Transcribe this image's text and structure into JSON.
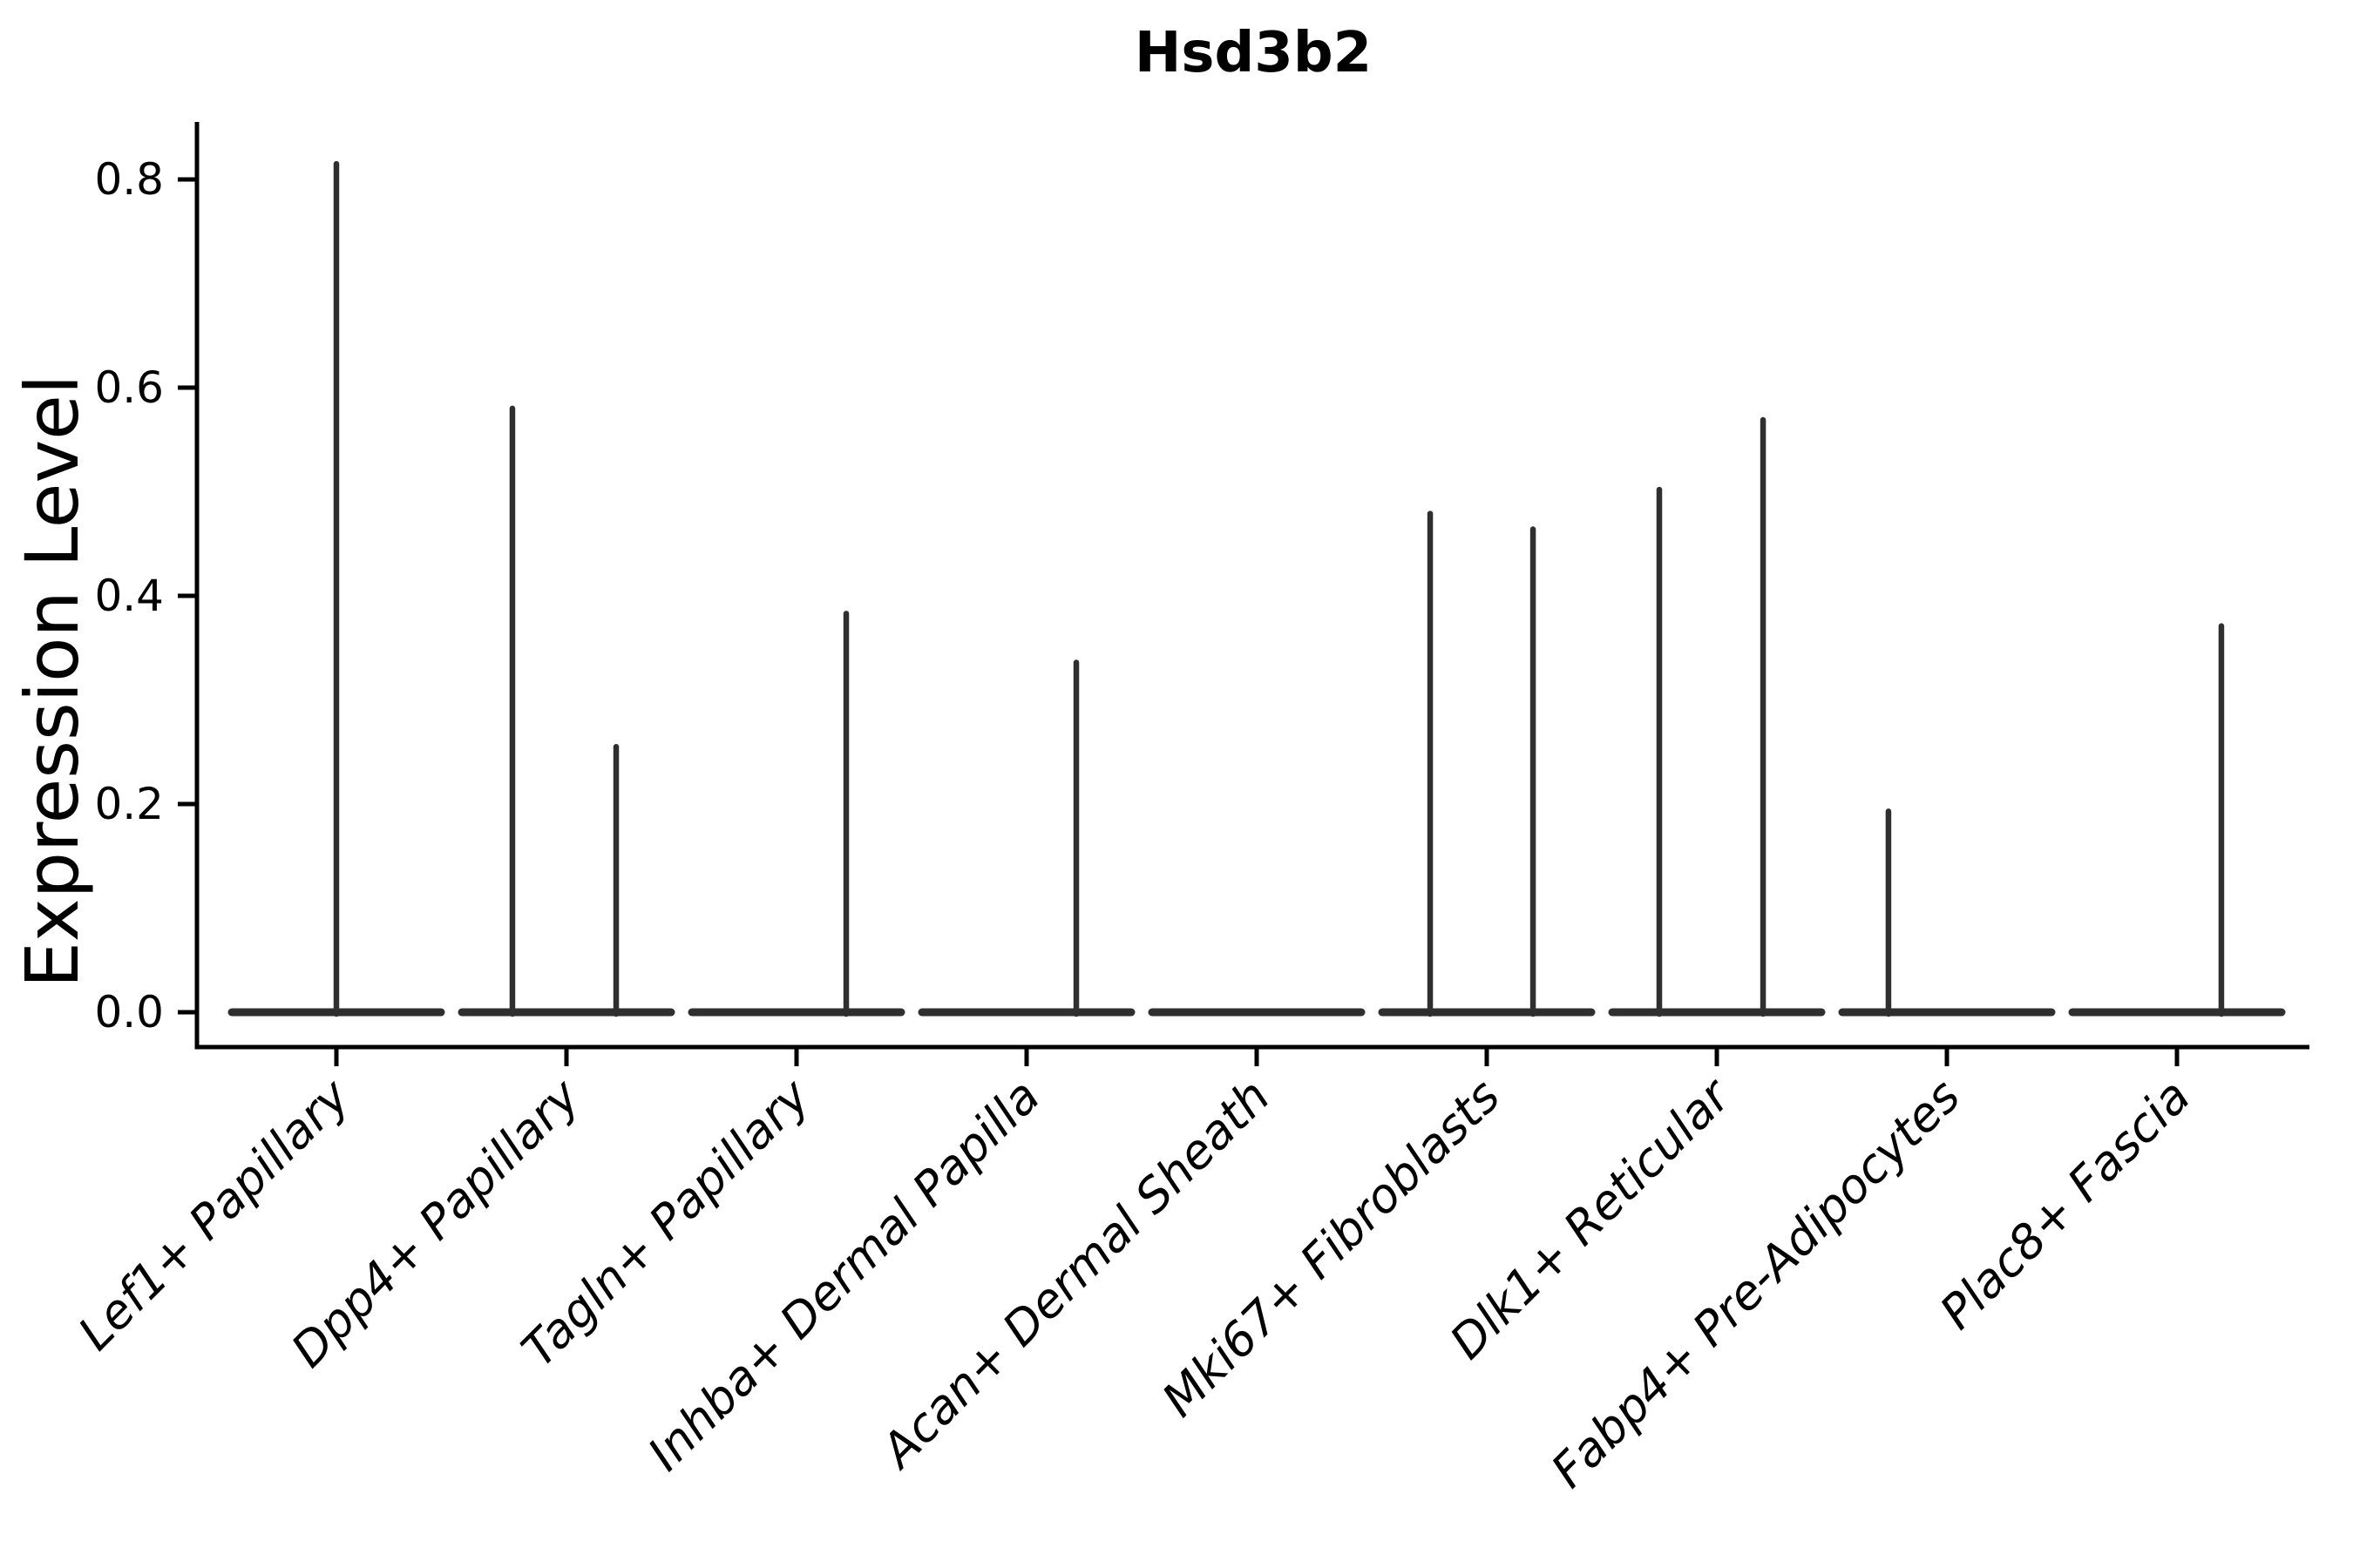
{
  "chart_data": {
    "type": "violin",
    "title": "Hsd3b2",
    "xlabel": "",
    "ylabel": "Expression Level",
    "ylim": [
      -0.034,
      0.855
    ],
    "grid": false,
    "legend": false,
    "yticks": [
      0.0,
      0.2,
      0.4,
      0.6,
      0.8
    ],
    "ytick_labels": [
      "0.0",
      "0.2",
      "0.4",
      "0.6",
      "0.8"
    ],
    "categories": [
      "Lef1+ Papillary",
      "Dpp4+ Papillary",
      "Tagln+ Papillary",
      "Inhba+ Dermal Papilla",
      "Acan+ Dermal Sheath",
      "Mki67+ Fibroblasts",
      "Dlk1+ Reticular",
      "Fabp4+ Pre-Adipocytes",
      "Plac8+ Fascia"
    ],
    "violins": [
      {
        "category": "Lef1+ Papillary",
        "zero_base": true,
        "spikes": [
          {
            "offset": 0.0,
            "value": 0.815
          }
        ]
      },
      {
        "category": "Dpp4+ Papillary",
        "zero_base": true,
        "spikes": [
          {
            "offset": -0.235,
            "value": 0.58
          },
          {
            "offset": 0.216,
            "value": 0.255
          }
        ]
      },
      {
        "category": "Tagln+ Papillary",
        "zero_base": true,
        "spikes": [
          {
            "offset": 0.216,
            "value": 0.383
          }
        ]
      },
      {
        "category": "Inhba+ Dermal Papilla",
        "zero_base": true,
        "spikes": [
          {
            "offset": 0.216,
            "value": 0.336
          }
        ]
      },
      {
        "category": "Acan+ Dermal Sheath",
        "zero_base": true,
        "spikes": []
      },
      {
        "category": "Mki67+ Fibroblasts",
        "zero_base": true,
        "spikes": [
          {
            "offset": -0.246,
            "value": 0.479
          },
          {
            "offset": 0.201,
            "value": 0.464
          }
        ]
      },
      {
        "category": "Dlk1+ Reticular",
        "zero_base": true,
        "spikes": [
          {
            "offset": -0.25,
            "value": 0.502
          },
          {
            "offset": 0.201,
            "value": 0.569
          }
        ]
      },
      {
        "category": "Fabp4+ Pre-Adipocytes",
        "zero_base": true,
        "spikes": [
          {
            "offset": -0.254,
            "value": 0.193
          }
        ]
      },
      {
        "category": "Plac8+ Fascia",
        "zero_base": true,
        "spikes": [
          {
            "offset": 0.193,
            "value": 0.371
          }
        ]
      }
    ],
    "colors": {
      "marks": "#2f2f2f",
      "axes": "#000000",
      "text": "#000000",
      "background": "#ffffff"
    }
  }
}
